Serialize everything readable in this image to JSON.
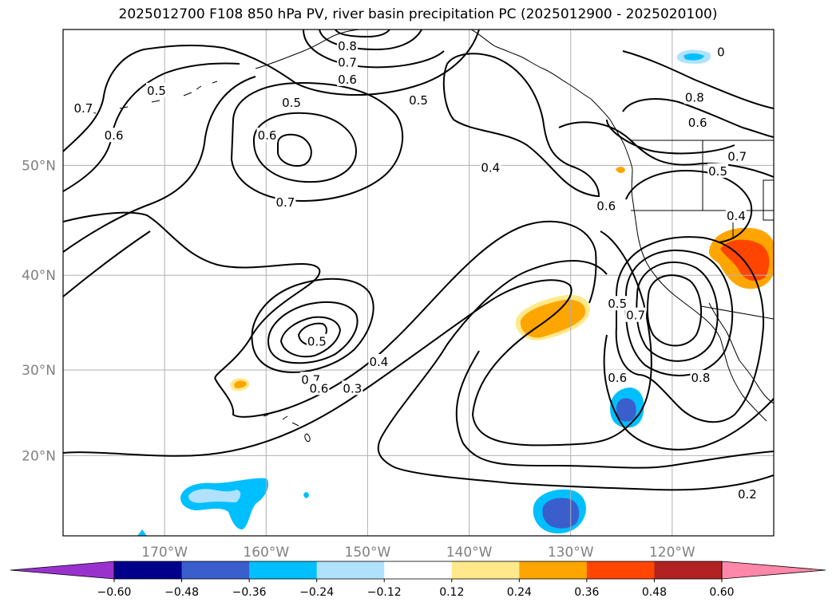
{
  "chart_data": {
    "type": "map",
    "title": "2025012700 F108 850 hPa PV, river basin precipitation PC (2025012900 - 2025020100)",
    "x_tick_labels": [
      "170°W",
      "160°W",
      "150°W",
      "140°W",
      "130°W",
      "120°W"
    ],
    "y_tick_labels": [
      "50°N",
      "40°N",
      "30°N",
      "20°N"
    ],
    "lon_ticks": [
      -170,
      -160,
      -150,
      -140,
      -130,
      -120
    ],
    "lat_ticks": [
      50,
      40,
      30,
      20
    ],
    "lon_range": [
      -180,
      -110
    ],
    "lat_range": [
      10,
      60
    ],
    "grid": true,
    "colorbar": {
      "orientation": "horizontal",
      "extend": "both",
      "tick_labels": [
        "−0.60",
        "−0.48",
        "−0.36",
        "−0.24",
        "−0.12",
        "0.12",
        "0.24",
        "0.36",
        "0.48",
        "0.60"
      ],
      "tick_values": [
        -0.6,
        -0.48,
        -0.36,
        -0.24,
        -0.12,
        0.12,
        0.24,
        0.36,
        0.48,
        0.6
      ],
      "colors": [
        "#9932cc",
        "#00008b",
        "#3a5fcd",
        "#00bfff",
        "#b0e2ff",
        "#ffffff",
        "#ffe98a",
        "#ffa500",
        "#ff4500",
        "#b22222",
        "#ff88aa"
      ]
    },
    "contour_labels": [
      {
        "text": "0.8",
        "lon": -152,
        "lat": 58.9
      },
      {
        "text": "0.7",
        "lon": -152,
        "lat": 57.8
      },
      {
        "text": "0.6",
        "lon": -152,
        "lat": 56.6
      },
      {
        "text": "0.7",
        "lon": -178,
        "lat": 54.5
      },
      {
        "text": "0.5",
        "lon": -170.8,
        "lat": 55.8
      },
      {
        "text": "0.6",
        "lon": -175,
        "lat": 52.4
      },
      {
        "text": "0.5",
        "lon": -157.5,
        "lat": 54.9
      },
      {
        "text": "0.5",
        "lon": -145,
        "lat": 55.1
      },
      {
        "text": "0.6",
        "lon": -159.9,
        "lat": 52.4
      },
      {
        "text": "0.7",
        "lon": -158.1,
        "lat": 46.8
      },
      {
        "text": "0.4",
        "lon": -137.9,
        "lat": 49.8
      },
      {
        "text": "0.6",
        "lon": -126.5,
        "lat": 46.5
      },
      {
        "text": "0.8",
        "lon": -117.8,
        "lat": 55.3
      },
      {
        "text": "0.6",
        "lon": -117.5,
        "lat": 53.4
      },
      {
        "text": "0.7",
        "lon": -113.6,
        "lat": 50.7
      },
      {
        "text": "0.5",
        "lon": -115.5,
        "lat": 49.5
      },
      {
        "text": "0.4",
        "lon": -113.7,
        "lat": 45.6
      },
      {
        "text": "0",
        "lon": -115.2,
        "lat": 58.5
      },
      {
        "text": "0.5",
        "lon": -155,
        "lat": 33.1
      },
      {
        "text": "0.7",
        "lon": -155.6,
        "lat": 28.9
      },
      {
        "text": "0.6",
        "lon": -154.8,
        "lat": 27.9
      },
      {
        "text": "0.4",
        "lon": -148.9,
        "lat": 30.9
      },
      {
        "text": "0.3",
        "lon": -151.5,
        "lat": 27.9
      },
      {
        "text": "0.5",
        "lon": -125.4,
        "lat": 37.1
      },
      {
        "text": "0.7",
        "lon": -123.6,
        "lat": 35.9
      },
      {
        "text": "0.6",
        "lon": -125.4,
        "lat": 29.1
      },
      {
        "text": "0.8",
        "lon": -117.2,
        "lat": 29.1
      },
      {
        "text": "0.2",
        "lon": -112.6,
        "lat": 15.2
      }
    ]
  }
}
